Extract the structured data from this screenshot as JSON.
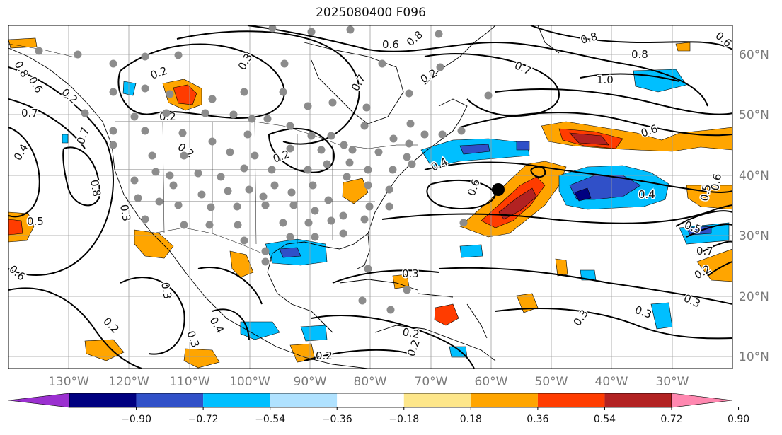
{
  "title": "2025080400 F096",
  "map": {
    "lon_labels": [
      "130°W",
      "120°W",
      "110°W",
      "100°W",
      "90°W",
      "80°W",
      "70°W",
      "60°W",
      "50°W",
      "40°W",
      "30°W"
    ],
    "lat_labels": [
      "60°N",
      "50°N",
      "40°N",
      "30°N",
      "20°N",
      "10°N"
    ],
    "contour_labels": [
      "0.2",
      "0.3",
      "0.2",
      "0.6",
      "0.8",
      "0.7",
      "0.8",
      "0.2",
      "0.7",
      "1.0",
      "0.6",
      "0.8",
      "0.6",
      "0.7",
      "0.4",
      "0.5",
      "0.2",
      "0.3",
      "0.2",
      "0.4",
      "0.6",
      "0.4",
      "0.5",
      "0.6",
      "0.7",
      "0.2",
      "0.3",
      "0.3",
      "0.3",
      "0.2",
      "0.3",
      "0.2",
      "0.3",
      "0.3",
      "0.2",
      "0.4",
      "0.5",
      "0.6",
      "0.8",
      "0.2",
      "0.6",
      "0.8",
      "0.7",
      "0.2"
    ],
    "colors": {
      "land_outline": "#000000",
      "grid": "#9e9e9e",
      "marker_dot": "#8c8c8c",
      "storm_marker": "#000000"
    }
  },
  "colorbar": {
    "ticks": [
      "−0.90",
      "−0.72",
      "−0.54",
      "−0.36",
      "−0.18",
      "0.18",
      "0.36",
      "0.54",
      "0.72",
      "0.90"
    ],
    "bins": [
      {
        "color": "#9b30d0"
      },
      {
        "color": "#000080"
      },
      {
        "color": "#3050c8"
      },
      {
        "color": "#00bfff"
      },
      {
        "color": "#b0e2ff"
      },
      {
        "color": "#ffffff"
      },
      {
        "color": "#fde68a"
      },
      {
        "color": "#ffa500"
      },
      {
        "color": "#ff3c00"
      },
      {
        "color": "#b22222"
      },
      {
        "color": "#ff88b0"
      }
    ]
  }
}
